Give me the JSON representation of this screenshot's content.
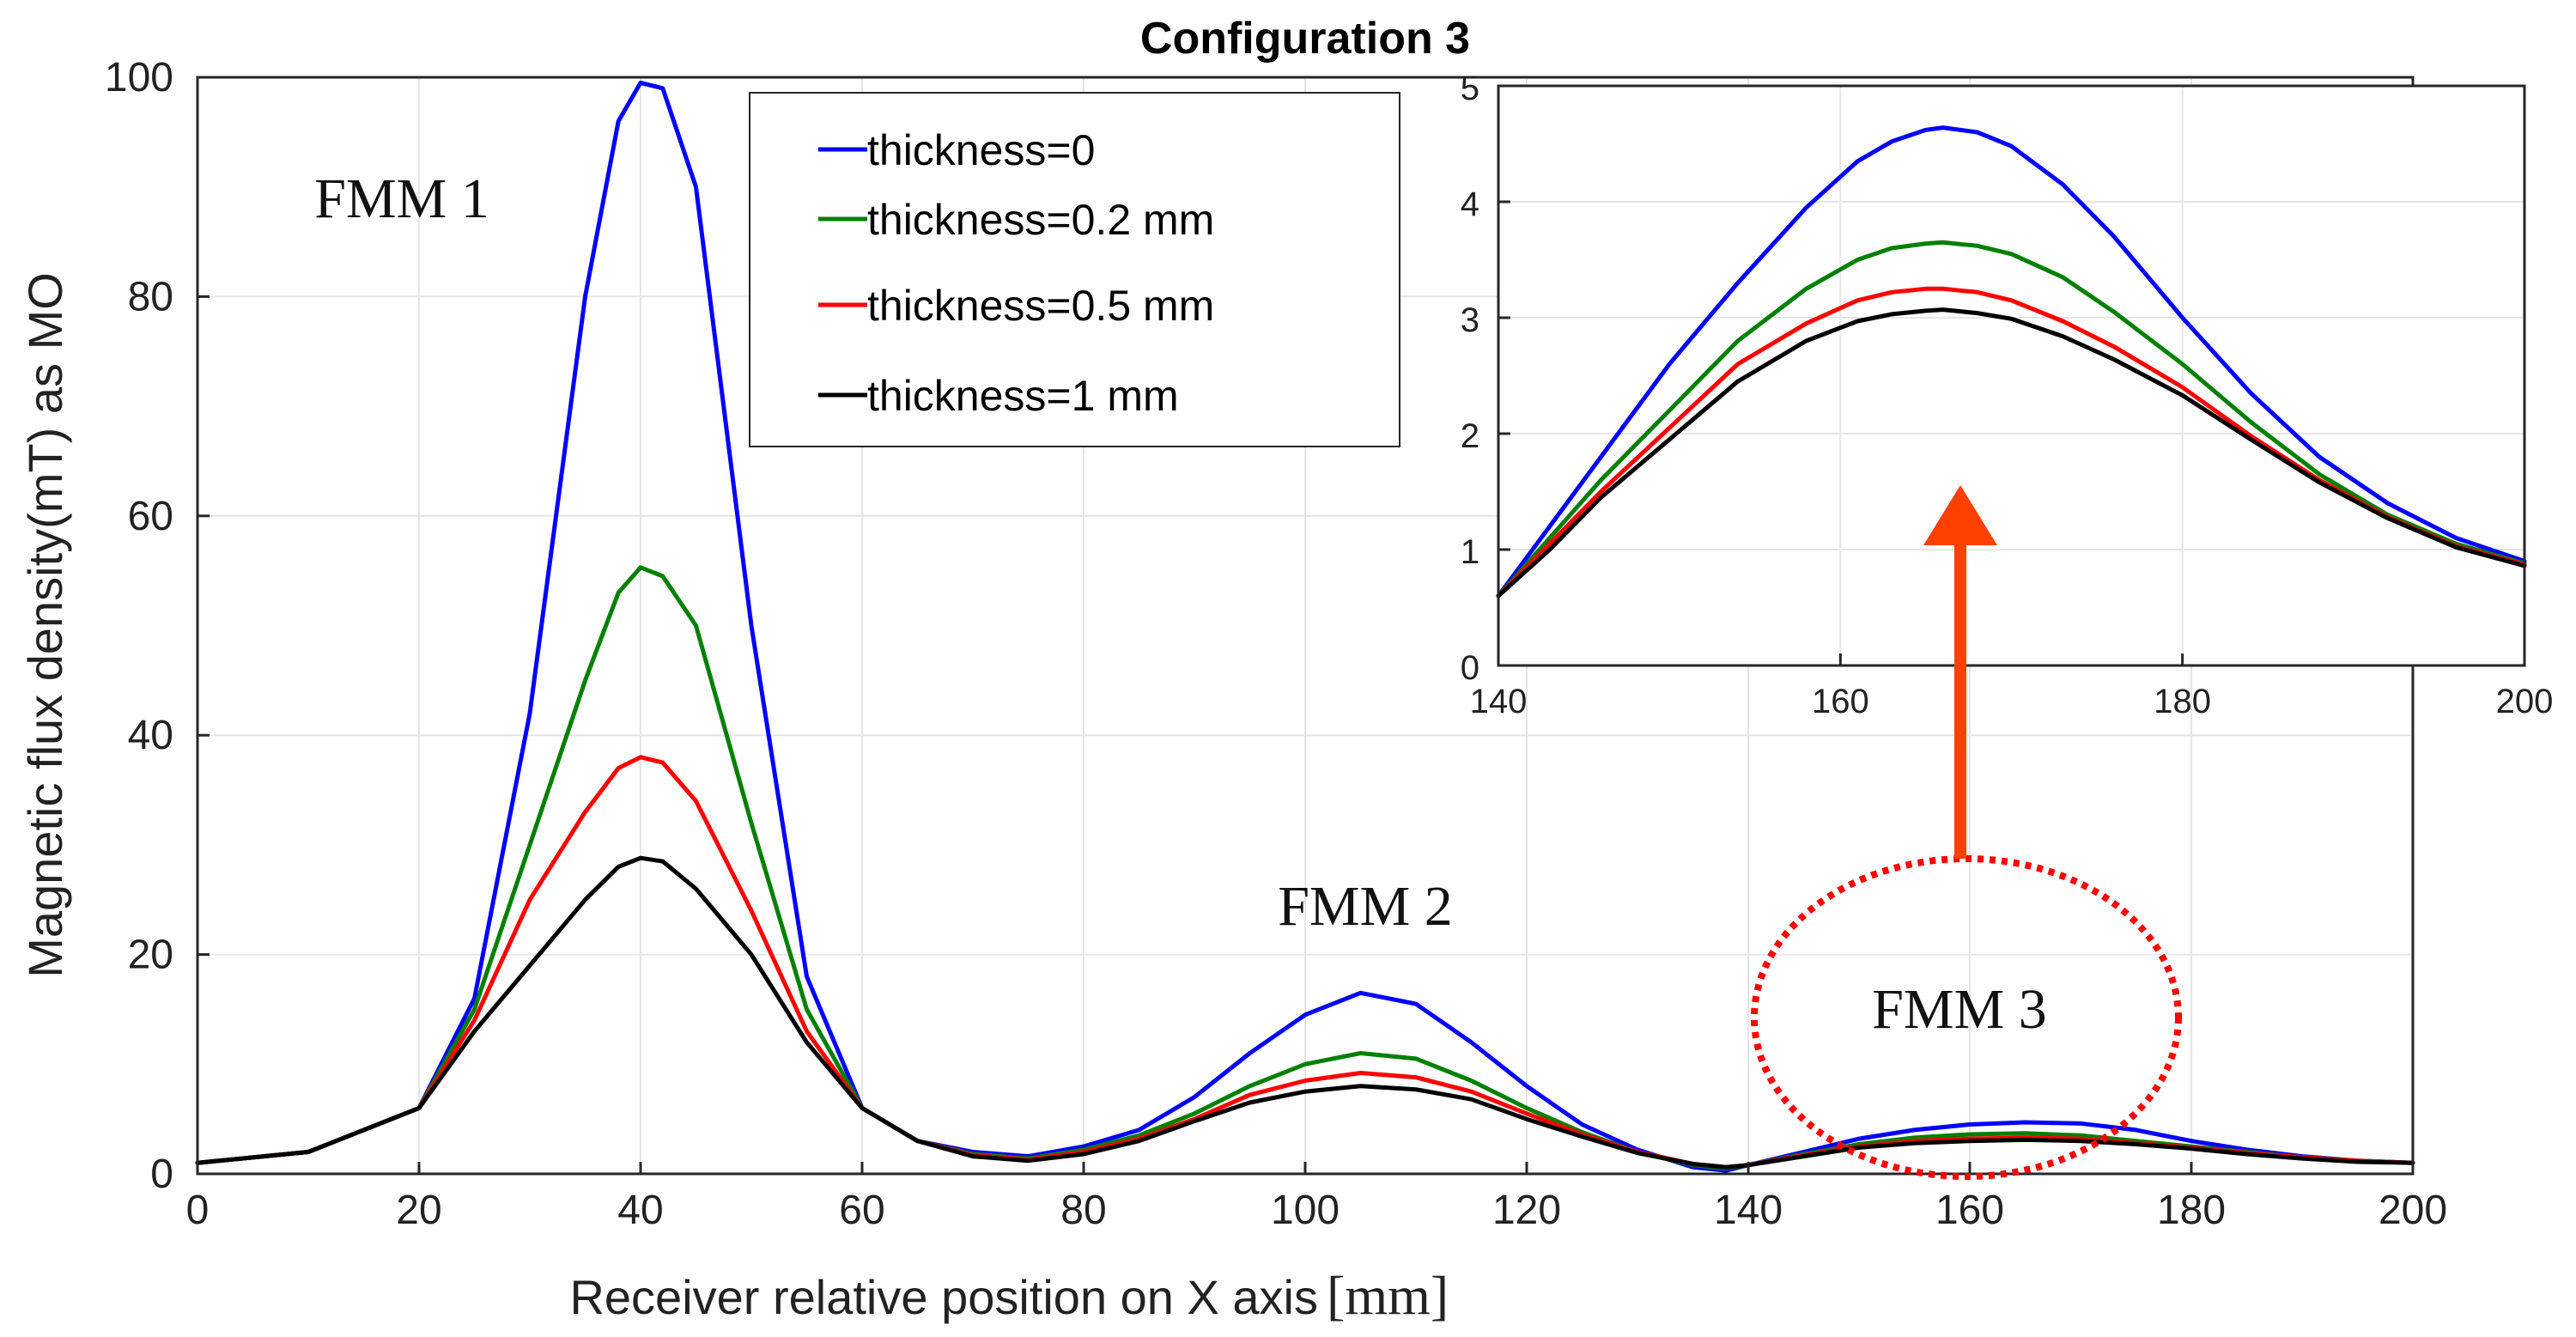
{
  "chart_data": {
    "type": "line",
    "title": "Configuration 3",
    "xlabel": "Receiver  relative position on X axis",
    "xlabel_unit": "[mm]",
    "ylabel": "Magnetic flux density(mT) as MO",
    "xlim": [
      0,
      200
    ],
    "ylim": [
      0,
      100
    ],
    "xticks": [
      0,
      20,
      40,
      60,
      80,
      100,
      120,
      140,
      160,
      180,
      200
    ],
    "yticks": [
      0,
      20,
      40,
      60,
      80,
      100
    ],
    "x": [
      0,
      10,
      20,
      25,
      30,
      35,
      38,
      40,
      42,
      45,
      50,
      55,
      60,
      65,
      70,
      75,
      80,
      85,
      90,
      95,
      100,
      105,
      110,
      115,
      120,
      125,
      130,
      135,
      138,
      140,
      145,
      150,
      155,
      160,
      165,
      170,
      175,
      180,
      185,
      190,
      195,
      200
    ],
    "series": [
      {
        "name": "thickness=0",
        "color": "#0000ff",
        "values": [
          1.0,
          2.0,
          6.0,
          16.0,
          42.0,
          80.0,
          96.0,
          99.5,
          99.0,
          90.0,
          50.0,
          18.0,
          6.0,
          3.0,
          2.0,
          1.6,
          2.5,
          4.0,
          7.0,
          11.0,
          14.5,
          16.5,
          15.5,
          12.0,
          8.0,
          4.5,
          2.2,
          0.6,
          0.3,
          0.8,
          2.0,
          3.2,
          4.0,
          4.5,
          4.7,
          4.6,
          4.0,
          3.0,
          2.2,
          1.6,
          1.2,
          1.0
        ]
      },
      {
        "name": "thickness=0.2 mm",
        "color": "#008000",
        "values": [
          1.0,
          2.0,
          6.0,
          15.0,
          30.0,
          45.0,
          53.0,
          55.3,
          54.5,
          50.0,
          32.0,
          15.0,
          6.0,
          3.0,
          1.8,
          1.4,
          2.2,
          3.5,
          5.5,
          8.0,
          10.0,
          11.0,
          10.5,
          8.5,
          6.0,
          3.8,
          2.0,
          0.8,
          0.5,
          0.8,
          1.8,
          2.7,
          3.3,
          3.6,
          3.7,
          3.5,
          3.0,
          2.5,
          2.0,
          1.5,
          1.2,
          1.0
        ]
      },
      {
        "name": "thickness=0.5 mm",
        "color": "#ff0000",
        "values": [
          1.0,
          2.0,
          6.0,
          14.0,
          25.0,
          33.0,
          37.0,
          38.0,
          37.5,
          34.0,
          24.0,
          13.0,
          6.0,
          3.0,
          1.7,
          1.3,
          2.0,
          3.2,
          5.0,
          7.2,
          8.5,
          9.2,
          8.8,
          7.5,
          5.5,
          3.6,
          2.0,
          0.9,
          0.6,
          0.8,
          1.7,
          2.5,
          3.0,
          3.2,
          3.3,
          3.2,
          2.8,
          2.4,
          1.9,
          1.5,
          1.2,
          1.0
        ]
      },
      {
        "name": "thickness=1 mm",
        "color": "#000000",
        "values": [
          1.0,
          2.0,
          6.0,
          13.0,
          19.0,
          25.0,
          28.0,
          28.8,
          28.5,
          26.0,
          20.0,
          12.0,
          6.0,
          3.0,
          1.6,
          1.2,
          1.8,
          3.0,
          4.8,
          6.5,
          7.5,
          8.0,
          7.7,
          6.8,
          5.0,
          3.4,
          1.9,
          0.9,
          0.6,
          0.8,
          1.6,
          2.4,
          2.8,
          3.0,
          3.1,
          3.0,
          2.7,
          2.3,
          1.8,
          1.4,
          1.1,
          1.0
        ]
      }
    ],
    "annotations": [
      "FMM 1",
      "FMM 2",
      "FMM 3"
    ],
    "legend_position": "top-center",
    "inset": {
      "xlim": [
        140,
        200
      ],
      "ylim": [
        0,
        5
      ],
      "xticks": [
        140,
        160,
        180,
        200
      ],
      "yticks": [
        0,
        1,
        2,
        3,
        4,
        5
      ],
      "x": [
        140,
        143,
        146,
        150,
        154,
        158,
        161,
        163,
        165,
        166,
        168,
        170,
        173,
        176,
        180,
        184,
        188,
        192,
        196,
        200
      ],
      "series": [
        {
          "name": "thickness=0",
          "color": "#0000ff",
          "values": [
            0.6,
            1.2,
            1.8,
            2.6,
            3.3,
            3.95,
            4.35,
            4.52,
            4.62,
            4.64,
            4.6,
            4.48,
            4.15,
            3.7,
            3.0,
            2.35,
            1.8,
            1.4,
            1.1,
            0.9
          ]
        },
        {
          "name": "thickness=0.2 mm",
          "color": "#008000",
          "values": [
            0.6,
            1.1,
            1.6,
            2.2,
            2.8,
            3.25,
            3.5,
            3.6,
            3.64,
            3.65,
            3.62,
            3.55,
            3.35,
            3.05,
            2.6,
            2.1,
            1.65,
            1.3,
            1.05,
            0.88
          ]
        },
        {
          "name": "thickness=0.5 mm",
          "color": "#ff0000",
          "values": [
            0.6,
            1.05,
            1.5,
            2.05,
            2.6,
            2.95,
            3.15,
            3.22,
            3.25,
            3.25,
            3.22,
            3.15,
            2.97,
            2.75,
            2.4,
            1.98,
            1.6,
            1.28,
            1.03,
            0.87
          ]
        },
        {
          "name": "thickness=1 mm",
          "color": "#000000",
          "values": [
            0.6,
            1.0,
            1.45,
            1.95,
            2.45,
            2.8,
            2.97,
            3.03,
            3.06,
            3.07,
            3.04,
            2.99,
            2.84,
            2.64,
            2.33,
            1.95,
            1.58,
            1.27,
            1.02,
            0.86
          ]
        }
      ]
    }
  }
}
